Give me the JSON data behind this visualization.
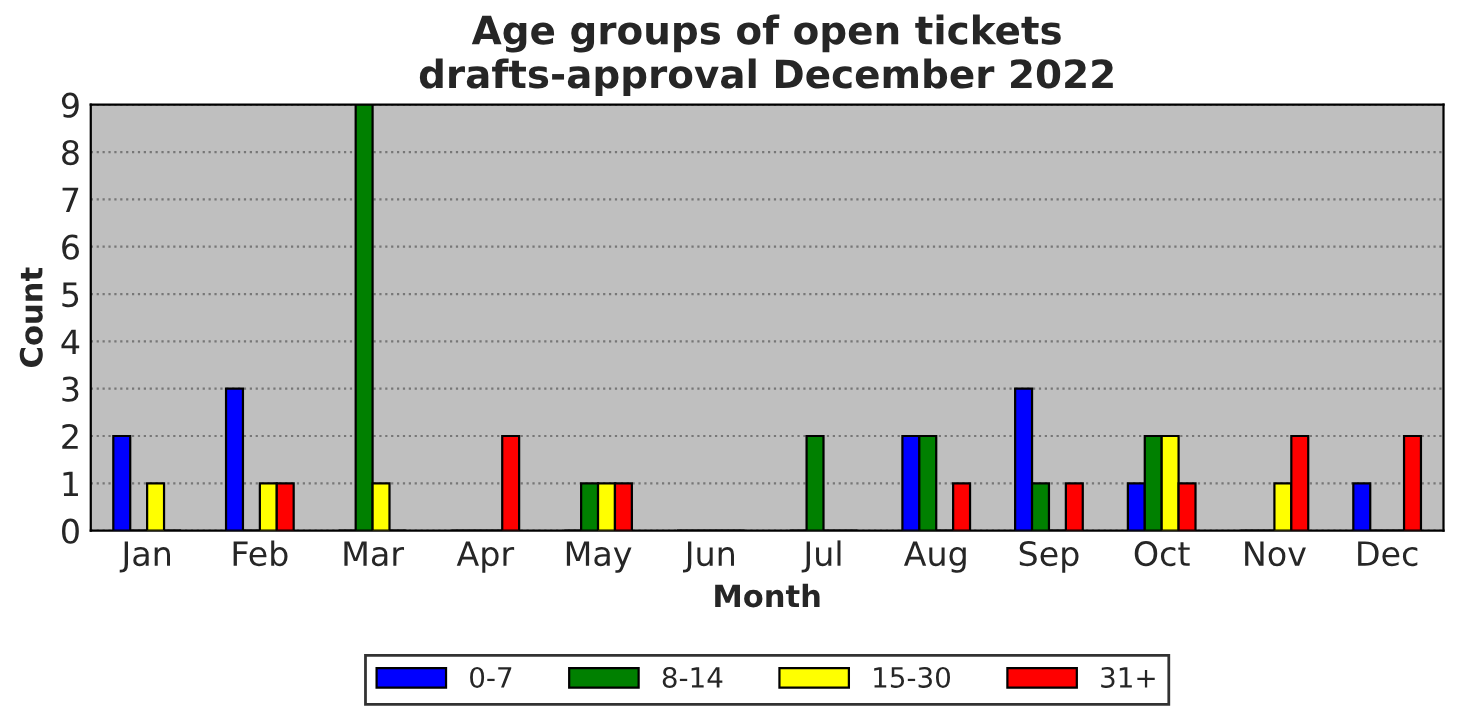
{
  "chart_data": {
    "type": "bar",
    "title": "Age groups of open tickets\ndrafts-approval December 2022",
    "xlabel": "Month",
    "ylabel": "Count",
    "categories": [
      "Jan",
      "Feb",
      "Mar",
      "Apr",
      "May",
      "Jun",
      "Jul",
      "Aug",
      "Sep",
      "Oct",
      "Nov",
      "Dec"
    ],
    "series": [
      {
        "name": "0-7",
        "color": "#0000ff",
        "values": [
          2,
          3,
          0,
          0,
          0,
          0,
          0,
          2,
          3,
          1,
          0,
          1
        ]
      },
      {
        "name": "8-14",
        "color": "#008000",
        "values": [
          0,
          0,
          9,
          0,
          1,
          0,
          2,
          2,
          1,
          2,
          0,
          0
        ]
      },
      {
        "name": "15-30",
        "color": "#ffff00",
        "values": [
          1,
          1,
          1,
          0,
          1,
          0,
          0,
          0,
          0,
          2,
          1,
          0
        ]
      },
      {
        "name": "31+",
        "color": "#ff0000",
        "values": [
          0,
          1,
          0,
          2,
          1,
          0,
          0,
          1,
          1,
          1,
          2,
          2
        ]
      }
    ],
    "ylim": [
      0,
      9
    ],
    "yticks": [
      0,
      1,
      2,
      3,
      4,
      5,
      6,
      7,
      8,
      9
    ],
    "grid": "y",
    "legend": "bottom"
  }
}
